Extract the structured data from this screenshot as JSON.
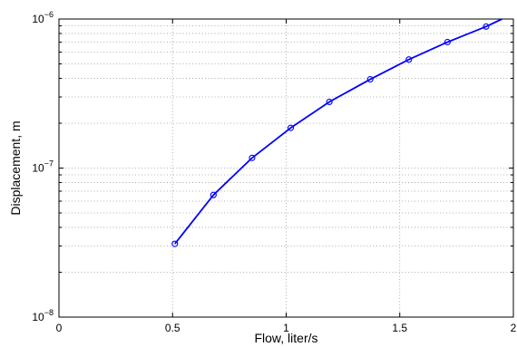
{
  "chart_data": {
    "type": "line",
    "xlabel": "Flow, liter/s",
    "ylabel": "Displacement, m",
    "xlim": [
      0,
      2
    ],
    "ylim": [
      1e-08,
      1e-06
    ],
    "y_scale": "log",
    "grid": true,
    "x_ticks": [
      {
        "value": 0,
        "label": "0"
      },
      {
        "value": 0.5,
        "label": "0.5"
      },
      {
        "value": 1,
        "label": "1"
      },
      {
        "value": 1.5,
        "label": "1.5"
      },
      {
        "value": 2,
        "label": "2"
      }
    ],
    "y_ticks": [
      {
        "value": 1e-08,
        "base": "10",
        "exp": "−8"
      },
      {
        "value": 1e-07,
        "base": "10",
        "exp": "−7"
      },
      {
        "value": 1e-06,
        "base": "10",
        "exp": "−6"
      }
    ],
    "series": [
      {
        "color": "#0000ff",
        "marker": "circle",
        "x": [
          0.51,
          0.68,
          0.85,
          1.02,
          1.19,
          1.37,
          1.54,
          1.71,
          1.88
        ],
        "y": [
          3.1e-08,
          6.6e-08,
          1.17e-07,
          1.86e-07,
          2.78e-07,
          3.94e-07,
          5.35e-07,
          7e-07,
          8.9e-07
        ],
        "curve_x": [
          0.51,
          0.68,
          0.85,
          1.02,
          1.19,
          1.37,
          1.54,
          1.71,
          1.88,
          1.95
        ],
        "curve_y": [
          3.1e-08,
          6.6e-08,
          1.17e-07,
          1.86e-07,
          2.78e-07,
          3.94e-07,
          5.35e-07,
          7e-07,
          8.9e-07,
          1e-06
        ]
      }
    ]
  }
}
